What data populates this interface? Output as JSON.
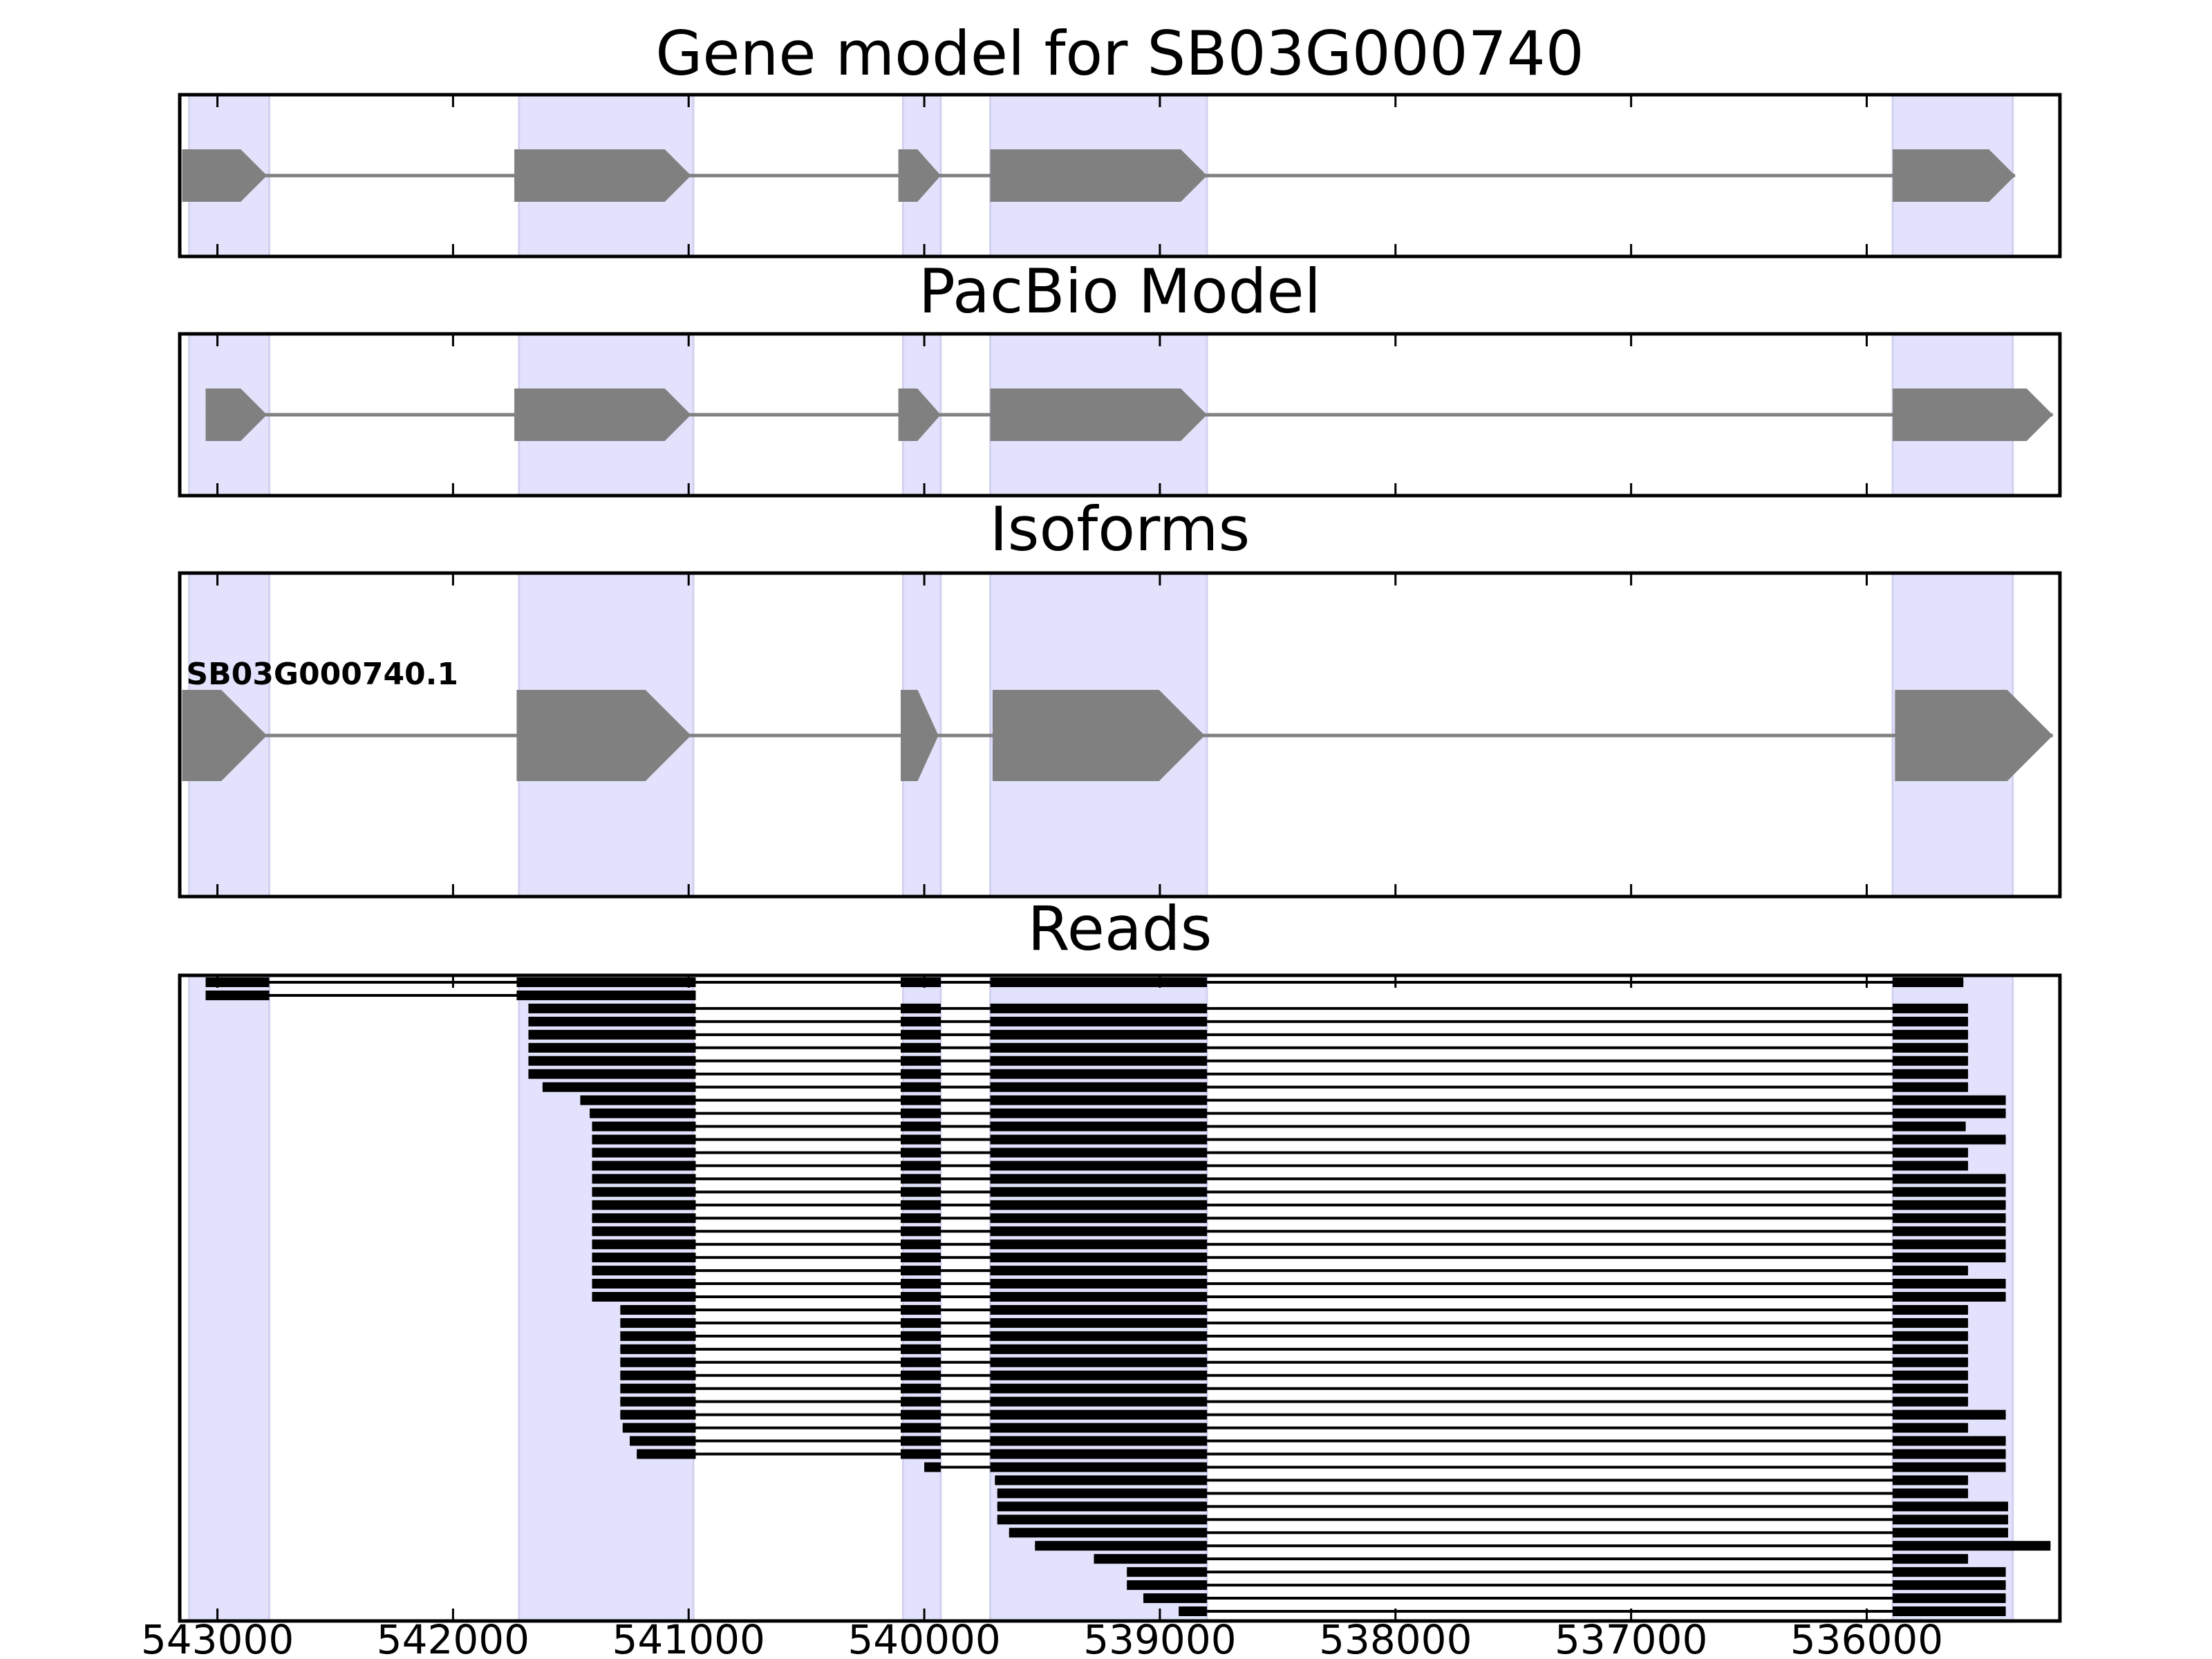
{
  "chart_data": {
    "type": "gene-track",
    "x_axis": {
      "xlim": [
        543160,
        535180
      ],
      "reversed": true,
      "ticks": [
        543000,
        542000,
        541000,
        540000,
        539000,
        538000,
        537000,
        536000
      ],
      "tick_labels": [
        "543000",
        "542000",
        "541000",
        "540000",
        "539000",
        "538000",
        "537000",
        "536000"
      ]
    },
    "highlight_color": "#e2e2fc",
    "feature_color": "#808080",
    "read_color": "#000000",
    "highlight_regions": [
      [
        543120,
        542780
      ],
      [
        541720,
        540980
      ],
      [
        540090,
        539930
      ],
      [
        539720,
        538800
      ],
      [
        535890,
        535380
      ]
    ],
    "panels": [
      {
        "id": "gene-model",
        "title": "Gene model for SB03G000740",
        "exons": [
          [
            543150,
            542790
          ],
          [
            541740,
            540990
          ],
          [
            540110,
            539930
          ],
          [
            539720,
            538800
          ],
          [
            535890,
            535370
          ]
        ]
      },
      {
        "id": "pacbio-model",
        "title": "PacBio Model",
        "exons": [
          [
            543050,
            542790
          ],
          [
            541740,
            540990
          ],
          [
            540110,
            539930
          ],
          [
            539720,
            538800
          ],
          [
            535890,
            535210
          ]
        ]
      },
      {
        "id": "isoforms",
        "title": "Isoforms",
        "isoform_label": "SB03G000740.1",
        "exons": [
          [
            543150,
            542790
          ],
          [
            541730,
            540990
          ],
          [
            540100,
            539940
          ],
          [
            539710,
            538810
          ],
          [
            535880,
            535210
          ]
        ]
      },
      {
        "id": "reads",
        "title": "Reads",
        "reads": [
          [
            [
              543050,
              542780
            ],
            [
              541730,
              540970
            ],
            [
              540100,
              539930
            ],
            [
              539720,
              538800
            ],
            [
              535890,
              535590
            ]
          ],
          [
            [
              543050,
              542780
            ],
            [
              541730,
              540970
            ]
          ],
          [
            [
              541680,
              540970
            ],
            [
              540100,
              539930
            ],
            [
              539720,
              538800
            ],
            [
              535890,
              535570
            ]
          ],
          [
            [
              541680,
              540970
            ],
            [
              540100,
              539930
            ],
            [
              539720,
              538800
            ],
            [
              535890,
              535570
            ]
          ],
          [
            [
              541680,
              540970
            ],
            [
              540100,
              539930
            ],
            [
              539720,
              538800
            ],
            [
              535890,
              535570
            ]
          ],
          [
            [
              541680,
              540970
            ],
            [
              540100,
              539930
            ],
            [
              539720,
              538800
            ],
            [
              535890,
              535570
            ]
          ],
          [
            [
              541680,
              540970
            ],
            [
              540100,
              539930
            ],
            [
              539720,
              538800
            ],
            [
              535890,
              535570
            ]
          ],
          [
            [
              541680,
              540970
            ],
            [
              540100,
              539930
            ],
            [
              539720,
              538800
            ],
            [
              535890,
              535570
            ]
          ],
          [
            [
              541620,
              540970
            ],
            [
              540100,
              539930
            ],
            [
              539720,
              538800
            ],
            [
              535890,
              535570
            ]
          ],
          [
            [
              541460,
              540970
            ],
            [
              540100,
              539930
            ],
            [
              539720,
              538800
            ],
            [
              535890,
              535410
            ]
          ],
          [
            [
              541420,
              540970
            ],
            [
              540100,
              539930
            ],
            [
              539720,
              538800
            ],
            [
              535890,
              535410
            ]
          ],
          [
            [
              541410,
              540970
            ],
            [
              540100,
              539930
            ],
            [
              539720,
              538800
            ],
            [
              535890,
              535580
            ]
          ],
          [
            [
              541410,
              540970
            ],
            [
              540100,
              539930
            ],
            [
              539720,
              538800
            ],
            [
              535890,
              535410
            ]
          ],
          [
            [
              541410,
              540970
            ],
            [
              540100,
              539930
            ],
            [
              539720,
              538800
            ],
            [
              535890,
              535570
            ]
          ],
          [
            [
              541410,
              540970
            ],
            [
              540100,
              539930
            ],
            [
              539720,
              538800
            ],
            [
              535890,
              535570
            ]
          ],
          [
            [
              541410,
              540970
            ],
            [
              540100,
              539930
            ],
            [
              539720,
              538800
            ],
            [
              535890,
              535410
            ]
          ],
          [
            [
              541410,
              540970
            ],
            [
              540100,
              539930
            ],
            [
              539720,
              538800
            ],
            [
              535890,
              535410
            ]
          ],
          [
            [
              541410,
              540970
            ],
            [
              540100,
              539930
            ],
            [
              539720,
              538800
            ],
            [
              535890,
              535410
            ]
          ],
          [
            [
              541410,
              540970
            ],
            [
              540100,
              539930
            ],
            [
              539720,
              538800
            ],
            [
              535890,
              535410
            ]
          ],
          [
            [
              541410,
              540970
            ],
            [
              540100,
              539930
            ],
            [
              539720,
              538800
            ],
            [
              535890,
              535410
            ]
          ],
          [
            [
              541410,
              540970
            ],
            [
              540100,
              539930
            ],
            [
              539720,
              538800
            ],
            [
              535890,
              535410
            ]
          ],
          [
            [
              541410,
              540970
            ],
            [
              540100,
              539930
            ],
            [
              539720,
              538800
            ],
            [
              535890,
              535410
            ]
          ],
          [
            [
              541410,
              540970
            ],
            [
              540100,
              539930
            ],
            [
              539720,
              538800
            ],
            [
              535890,
              535570
            ]
          ],
          [
            [
              541410,
              540970
            ],
            [
              540100,
              539930
            ],
            [
              539720,
              538800
            ],
            [
              535890,
              535410
            ]
          ],
          [
            [
              541410,
              540970
            ],
            [
              540100,
              539930
            ],
            [
              539720,
              538800
            ],
            [
              535890,
              535410
            ]
          ],
          [
            [
              541290,
              540970
            ],
            [
              540100,
              539930
            ],
            [
              539720,
              538800
            ],
            [
              535890,
              535570
            ]
          ],
          [
            [
              541290,
              540970
            ],
            [
              540100,
              539930
            ],
            [
              539720,
              538800
            ],
            [
              535890,
              535570
            ]
          ],
          [
            [
              541290,
              540970
            ],
            [
              540100,
              539930
            ],
            [
              539720,
              538800
            ],
            [
              535890,
              535570
            ]
          ],
          [
            [
              541290,
              540970
            ],
            [
              540100,
              539930
            ],
            [
              539720,
              538800
            ],
            [
              535890,
              535570
            ]
          ],
          [
            [
              541290,
              540970
            ],
            [
              540100,
              539930
            ],
            [
              539720,
              538800
            ],
            [
              535890,
              535570
            ]
          ],
          [
            [
              541290,
              540970
            ],
            [
              540100,
              539930
            ],
            [
              539720,
              538800
            ],
            [
              535890,
              535570
            ]
          ],
          [
            [
              541290,
              540970
            ],
            [
              540100,
              539930
            ],
            [
              539720,
              538800
            ],
            [
              535890,
              535570
            ]
          ],
          [
            [
              541290,
              540970
            ],
            [
              540100,
              539930
            ],
            [
              539720,
              538800
            ],
            [
              535890,
              535570
            ]
          ],
          [
            [
              541290,
              540970
            ],
            [
              540100,
              539930
            ],
            [
              539720,
              538800
            ],
            [
              535890,
              535410
            ]
          ],
          [
            [
              541280,
              540970
            ],
            [
              540100,
              539930
            ],
            [
              539720,
              538800
            ],
            [
              535890,
              535570
            ]
          ],
          [
            [
              541250,
              540970
            ],
            [
              540100,
              539930
            ],
            [
              539720,
              538800
            ],
            [
              535890,
              535410
            ]
          ],
          [
            [
              541220,
              540970
            ],
            [
              540100,
              539930
            ],
            [
              539720,
              538800
            ],
            [
              535890,
              535410
            ]
          ],
          [
            [
              540000,
              539930
            ],
            [
              539720,
              538800
            ],
            [
              535890,
              535410
            ]
          ],
          [
            [
              539700,
              538800
            ],
            [
              535890,
              535570
            ]
          ],
          [
            [
              539690,
              538800
            ],
            [
              535890,
              535570
            ]
          ],
          [
            [
              539690,
              538800
            ],
            [
              535890,
              535400
            ]
          ],
          [
            [
              539690,
              538800
            ],
            [
              535890,
              535400
            ]
          ],
          [
            [
              539640,
              538800
            ],
            [
              535890,
              535400
            ]
          ],
          [
            [
              539530,
              538800
            ],
            [
              535890,
              535220
            ]
          ],
          [
            [
              539280,
              538800
            ],
            [
              535890,
              535570
            ]
          ],
          [
            [
              539140,
              538800
            ],
            [
              535890,
              535410
            ]
          ],
          [
            [
              539140,
              538800
            ],
            [
              535890,
              535410
            ]
          ],
          [
            [
              539070,
              538800
            ],
            [
              535890,
              535410
            ]
          ],
          [
            [
              538920,
              538800
            ],
            [
              535890,
              535410
            ]
          ]
        ]
      }
    ]
  }
}
